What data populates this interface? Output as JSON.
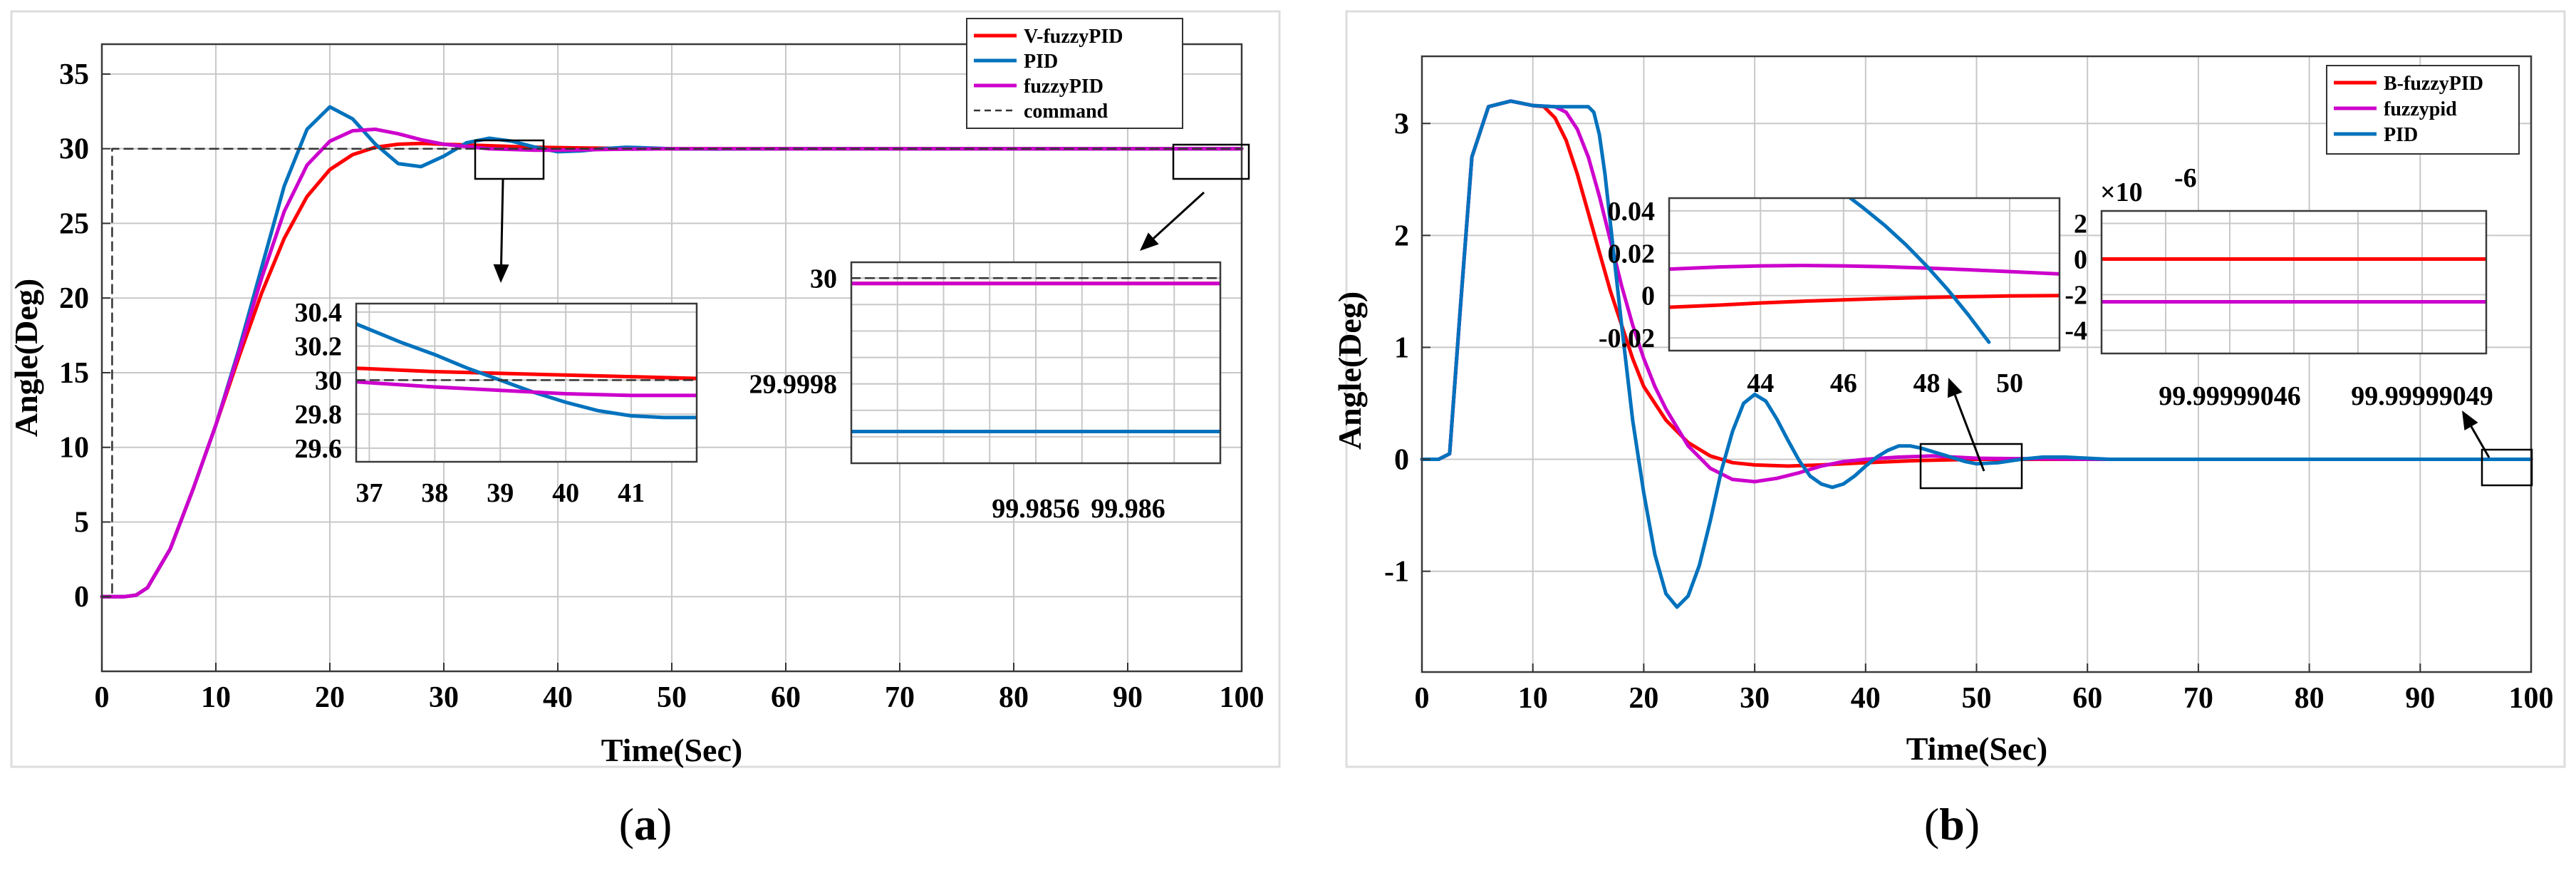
{
  "chart_data": [
    {
      "id": "a",
      "type": "line",
      "caption": "(a)",
      "xlabel": "Time(Sec)",
      "ylabel": "Angle(Deg)",
      "xlim": [
        0,
        100
      ],
      "ylim": [
        -5,
        37
      ],
      "xticks": [
        "0",
        "10",
        "20",
        "30",
        "40",
        "50",
        "60",
        "70",
        "80",
        "90",
        "100"
      ],
      "yticks": [
        "0",
        "5",
        "10",
        "15",
        "20",
        "25",
        "30",
        "35"
      ],
      "grid": true,
      "legend_position": "top-right",
      "series": [
        {
          "name": "V-fuzzyPID",
          "color": "#ff0000",
          "style": "solid",
          "x": [
            0,
            2,
            3,
            4,
            6,
            8,
            10,
            12,
            14,
            16,
            18,
            20,
            22,
            24,
            26,
            28,
            30,
            34,
            38,
            42,
            46,
            50,
            60,
            100
          ],
          "y": [
            0,
            0,
            0.1,
            0.6,
            3.2,
            7.2,
            11.5,
            16.0,
            20.3,
            24.0,
            26.8,
            28.6,
            29.6,
            30.1,
            30.3,
            30.35,
            30.3,
            30.2,
            30.1,
            30.05,
            30.02,
            30.0,
            30.0,
            30.0
          ]
        },
        {
          "name": "PID",
          "color": "#0072bd",
          "style": "solid",
          "x": [
            0,
            2,
            3,
            4,
            6,
            8,
            10,
            12,
            14,
            16,
            18,
            20,
            22,
            24,
            26,
            28,
            30,
            32,
            34,
            36,
            38,
            40,
            42,
            44,
            46,
            48,
            50,
            54,
            60,
            100
          ],
          "y": [
            0,
            0,
            0.1,
            0.6,
            3.2,
            7.2,
            11.5,
            16.5,
            22.0,
            27.5,
            31.3,
            32.8,
            32.0,
            30.3,
            29.0,
            28.8,
            29.5,
            30.4,
            30.7,
            30.5,
            30.1,
            29.8,
            29.85,
            30.0,
            30.1,
            30.05,
            30.0,
            29.98,
            30.0,
            30.0
          ]
        },
        {
          "name": "fuzzyPID",
          "color": "#cc00cc",
          "style": "solid",
          "x": [
            0,
            2,
            3,
            4,
            6,
            8,
            10,
            12,
            14,
            16,
            18,
            20,
            22,
            24,
            26,
            28,
            30,
            34,
            38,
            42,
            46,
            50,
            60,
            100
          ],
          "y": [
            0,
            0,
            0.1,
            0.6,
            3.2,
            7.2,
            11.5,
            16.3,
            21.3,
            25.8,
            28.9,
            30.5,
            31.2,
            31.3,
            31.0,
            30.6,
            30.3,
            30.0,
            29.9,
            29.92,
            29.97,
            30.0,
            30.0,
            30.0
          ]
        },
        {
          "name": "command",
          "color": "#333333",
          "style": "dashed",
          "x": [
            0,
            0.9,
            0.9,
            100
          ],
          "y": [
            0,
            0,
            30,
            30
          ]
        }
      ],
      "insets": [
        {
          "xlim": [
            36.8,
            42
          ],
          "ylim": [
            29.52,
            30.45
          ],
          "xticks": [
            "37",
            "38",
            "39",
            "40",
            "41"
          ],
          "yticks": [
            "29.6",
            "29.8",
            "30",
            "30.2",
            "30.4"
          ],
          "series": [
            {
              "name": "V-fuzzyPID",
              "x": [
                36.8,
                38,
                39,
                40,
                41,
                42
              ],
              "y": [
                30.07,
                30.05,
                30.04,
                30.03,
                30.02,
                30.01
              ]
            },
            {
              "name": "PID",
              "x": [
                36.8,
                37.5,
                38,
                38.5,
                39,
                39.5,
                40,
                40.5,
                41,
                41.5,
                42
              ],
              "y": [
                30.33,
                30.22,
                30.15,
                30.07,
                30.0,
                29.93,
                29.87,
                29.82,
                29.79,
                29.78,
                29.78
              ]
            },
            {
              "name": "fuzzyPID",
              "x": [
                36.8,
                38,
                39,
                40,
                41,
                42
              ],
              "y": [
                29.99,
                29.96,
                29.94,
                29.92,
                29.91,
                29.91
              ]
            },
            {
              "name": "command",
              "x": [
                36.8,
                42
              ],
              "y": [
                30,
                30
              ]
            }
          ]
        },
        {
          "xlim": [
            99.9848,
            99.9864
          ],
          "ylim": [
            29.99965,
            30.00003
          ],
          "xticks": [
            "99.9856",
            "99.986"
          ],
          "yticks": [
            "29.9998",
            "30"
          ],
          "series": [
            {
              "name": "V-fuzzyPID",
              "x": [
                99.9848,
                99.9864
              ],
              "y": [
                29.99999,
                29.99999
              ]
            },
            {
              "name": "PID",
              "x": [
                99.9848,
                99.9864
              ],
              "y": [
                29.99971,
                29.99971
              ]
            },
            {
              "name": "fuzzyPID",
              "x": [
                99.9848,
                99.9864
              ],
              "y": [
                29.99999,
                29.99999
              ]
            },
            {
              "name": "command",
              "x": [
                99.9848,
                99.9864
              ],
              "y": [
                30.0,
                30.0
              ]
            }
          ]
        }
      ]
    },
    {
      "id": "b",
      "type": "line",
      "caption": "(b)",
      "xlabel": "Time(Sec)",
      "ylabel": "Angle(Deg)",
      "xlim": [
        0,
        100
      ],
      "ylim": [
        -1.9,
        3.6
      ],
      "xticks": [
        "0",
        "10",
        "20",
        "30",
        "40",
        "50",
        "60",
        "70",
        "80",
        "90",
        "100"
      ],
      "yticks": [
        "-1",
        "0",
        "1",
        "2",
        "3"
      ],
      "grid": true,
      "legend_position": "top-right",
      "series": [
        {
          "name": "B-fuzzyPID",
          "color": "#ff0000",
          "style": "solid",
          "x": [
            0,
            1.5,
            2.5,
            3.5,
            4.5,
            6,
            8,
            10,
            11,
            12,
            13,
            14,
            15,
            16,
            17,
            18,
            19,
            20,
            22,
            24,
            26,
            28,
            30,
            33,
            36,
            40,
            45,
            50,
            60,
            100
          ],
          "y": [
            0,
            0,
            0.05,
            1.4,
            2.7,
            3.15,
            3.2,
            3.16,
            3.15,
            3.05,
            2.85,
            2.55,
            2.2,
            1.85,
            1.5,
            1.2,
            0.9,
            0.65,
            0.35,
            0.15,
            0.03,
            -0.03,
            -0.05,
            -0.06,
            -0.05,
            -0.03,
            -0.01,
            0.0,
            0.0,
            0.0
          ]
        },
        {
          "name": "fuzzypid",
          "color": "#cc00cc",
          "style": "solid",
          "x": [
            0,
            1.5,
            2.5,
            3.5,
            4.5,
            6,
            8,
            10,
            12,
            13,
            14,
            15,
            16,
            17,
            18,
            19,
            20,
            21,
            22,
            24,
            26,
            28,
            30,
            32,
            34,
            36,
            38,
            40,
            43,
            46,
            50,
            60,
            100
          ],
          "y": [
            0,
            0,
            0.05,
            1.4,
            2.7,
            3.15,
            3.2,
            3.16,
            3.15,
            3.1,
            2.95,
            2.7,
            2.35,
            1.95,
            1.55,
            1.2,
            0.9,
            0.65,
            0.45,
            0.12,
            -0.08,
            -0.18,
            -0.2,
            -0.17,
            -0.12,
            -0.06,
            -0.02,
            0.0,
            0.02,
            0.03,
            0.01,
            0.0,
            0.0
          ]
        },
        {
          "name": "PID",
          "color": "#0072bd",
          "style": "solid",
          "x": [
            0,
            1.5,
            2.5,
            3.5,
            4.5,
            6,
            8,
            10,
            12,
            14,
            15,
            15.5,
            16,
            16.5,
            17,
            17.5,
            18,
            19,
            20,
            21,
            22,
            23,
            24,
            25,
            26,
            27,
            28,
            29,
            30,
            31,
            32,
            33,
            34,
            35,
            36,
            37,
            38,
            39,
            40,
            41,
            42,
            43,
            44,
            45,
            46,
            47,
            48,
            49,
            50,
            52,
            54,
            56,
            58,
            60,
            62,
            65,
            70,
            100
          ],
          "y": [
            0,
            0,
            0.05,
            1.4,
            2.7,
            3.15,
            3.2,
            3.16,
            3.15,
            3.15,
            3.15,
            3.1,
            2.9,
            2.55,
            2.1,
            1.65,
            1.2,
            0.35,
            -0.3,
            -0.85,
            -1.2,
            -1.32,
            -1.22,
            -0.95,
            -0.55,
            -0.1,
            0.25,
            0.5,
            0.58,
            0.52,
            0.36,
            0.17,
            -0.01,
            -0.15,
            -0.22,
            -0.25,
            -0.22,
            -0.15,
            -0.06,
            0.02,
            0.08,
            0.12,
            0.12,
            0.1,
            0.07,
            0.04,
            0.01,
            -0.02,
            -0.04,
            -0.03,
            0.0,
            0.02,
            0.02,
            0.01,
            0.0,
            0.0,
            0.0,
            0.0
          ]
        }
      ],
      "insets": [
        {
          "xlim": [
            41.8,
            51.2
          ],
          "ylim": [
            -0.026,
            0.046
          ],
          "xticks": [
            "44",
            "46",
            "48",
            "50"
          ],
          "yticks": [
            "-0.02",
            "0",
            "0.02",
            "0.04"
          ],
          "series": [
            {
              "name": "B-fuzzyPID",
              "x": [
                41.8,
                43,
                44,
                45,
                46,
                47,
                48,
                49,
                50,
                51.2
              ],
              "y": [
                -0.0055,
                -0.0045,
                -0.0035,
                -0.0027,
                -0.002,
                -0.0014,
                -0.0009,
                -0.0005,
                -0.0002,
                0.0
              ]
            },
            {
              "name": "fuzzypid",
              "x": [
                41.8,
                43,
                44,
                45,
                46,
                47,
                48,
                49,
                50,
                51.2
              ],
              "y": [
                0.0125,
                0.0135,
                0.014,
                0.0142,
                0.014,
                0.0136,
                0.013,
                0.0122,
                0.0113,
                0.0102
              ]
            },
            {
              "name": "PID",
              "x": [
                45.9,
                46.5,
                47,
                47.5,
                48,
                48.5,
                49,
                49.5
              ],
              "y": [
                0.05,
                0.041,
                0.033,
                0.024,
                0.014,
                0.003,
                -0.009,
                -0.022
              ]
            }
          ]
        },
        {
          "xlim": [
            99.99999044,
            99.9999905
          ],
          "ylim": [
            -5.3,
            2.7
          ],
          "xticks": [
            "99.99999046",
            "99.99999049"
          ],
          "yticks": [
            "-4",
            "-2",
            "0",
            "2"
          ],
          "multiplier": "×10",
          "multiplier_exp": "-6",
          "series": [
            {
              "name": "B-fuzzyPID",
              "x": [
                99.99999044,
                99.9999905
              ],
              "y": [
                0.0,
                0.0
              ]
            },
            {
              "name": "fuzzypid",
              "x": [
                99.99999044,
                99.9999905
              ],
              "y": [
                -2.4,
                -2.4
              ]
            }
          ]
        }
      ]
    }
  ]
}
